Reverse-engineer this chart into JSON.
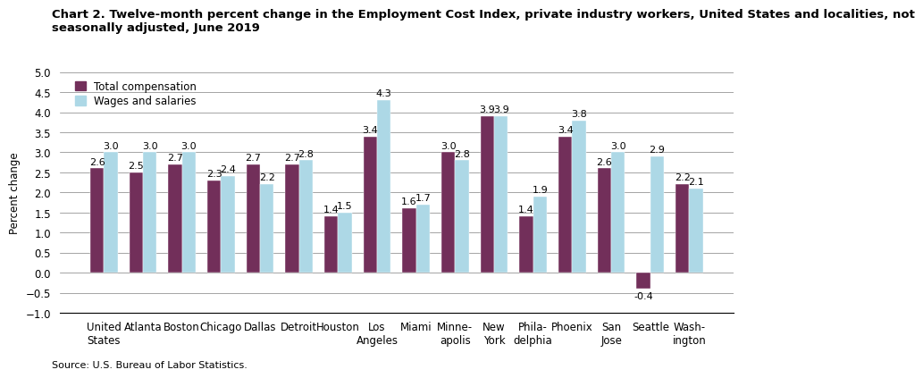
{
  "title_line1": "Chart 2. Twelve-month percent change in the Employment Cost Index, private industry workers, United States and localities, not",
  "title_line2": "seasonally adjusted, June 2019",
  "ylabel": "Percent change",
  "source": "Source: U.S. Bureau of Labor Statistics.",
  "ylim": [
    -1.0,
    5.0
  ],
  "yticks": [
    -1.0,
    -0.5,
    0.0,
    0.5,
    1.0,
    1.5,
    2.0,
    2.5,
    3.0,
    3.5,
    4.0,
    4.5,
    5.0
  ],
  "categories": [
    "United\nStates",
    "Atlanta",
    "Boston",
    "Chicago",
    "Dallas",
    "Detroit",
    "Houston",
    "Los\nAngeles",
    "Miami",
    "Minne-\napolis",
    "New\nYork",
    "Phila-\ndelphia",
    "Phoenix",
    "San\nJose",
    "Seattle",
    "Wash-\nington"
  ],
  "total_compensation": [
    2.6,
    2.5,
    2.7,
    2.3,
    2.7,
    2.7,
    1.4,
    3.4,
    1.6,
    3.0,
    3.9,
    1.4,
    3.4,
    2.6,
    -0.4,
    2.2
  ],
  "wages_and_salaries": [
    3.0,
    3.0,
    3.0,
    2.4,
    2.2,
    2.8,
    1.5,
    4.3,
    1.7,
    2.8,
    3.9,
    1.9,
    3.8,
    3.0,
    2.9,
    2.1
  ],
  "color_total": "#722F5A",
  "color_wages": "#ADD8E6",
  "bar_width": 0.35,
  "legend_labels": [
    "Total compensation",
    "Wages and salaries"
  ],
  "title_fontsize": 9.5,
  "label_fontsize": 8.5,
  "tick_fontsize": 8.5
}
